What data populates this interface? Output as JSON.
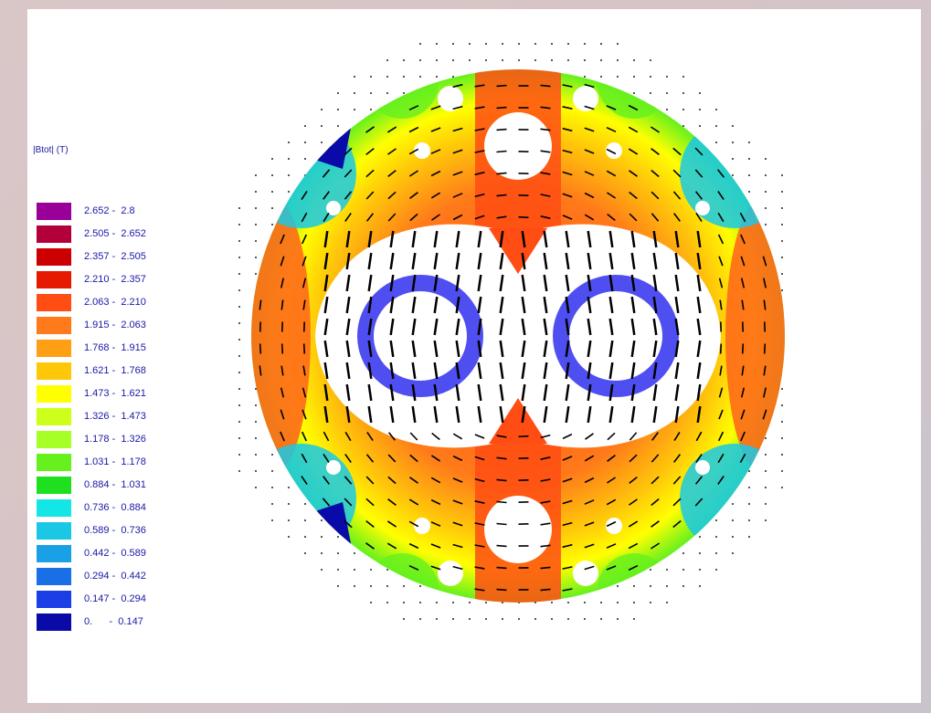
{
  "legend": {
    "title": "|Btot| (T)",
    "ranges": [
      {
        "label": "2.652 -  2.8",
        "color": "#990099"
      },
      {
        "label": "2.505 -  2.652",
        "color": "#b3003a"
      },
      {
        "label": "2.357 -  2.505",
        "color": "#cc0000"
      },
      {
        "label": "2.210 -  2.357",
        "color": "#e61a00"
      },
      {
        "label": "2.063 -  2.210",
        "color": "#ff4d14"
      },
      {
        "label": "1.915 -  2.063",
        "color": "#ff7a1a"
      },
      {
        "label": "1.768 -  1.915",
        "color": "#ff9f14"
      },
      {
        "label": "1.621 -  1.768",
        "color": "#ffc70a"
      },
      {
        "label": "1.473 -  1.621",
        "color": "#ffff00"
      },
      {
        "label": "1.326 -  1.473",
        "color": "#ccff1a"
      },
      {
        "label": "1.178 -  1.326",
        "color": "#a6ff26"
      },
      {
        "label": "1.031 -  1.178",
        "color": "#66f01e"
      },
      {
        "label": "0.884 -  1.031",
        "color": "#1fe01f"
      },
      {
        "label": "0.736 -  0.884",
        "color": "#14e6e6"
      },
      {
        "label": "0.589 -  0.736",
        "color": "#1ac8e6"
      },
      {
        "label": "0.442 -  0.589",
        "color": "#1aa0e6"
      },
      {
        "label": "0.294 -  0.442",
        "color": "#1a6ee6"
      },
      {
        "label": "0.147 -  0.294",
        "color": "#1a3fe6"
      },
      {
        "label": "0.      -  0.147",
        "color": "#0a0aa8"
      }
    ]
  },
  "colors": {
    "iron_high": "#f04010",
    "iron_mid": "#ffd000",
    "iron_low": "#7ae82a",
    "iron_min": "#1aa0e6",
    "coil": "#3c3cf0",
    "arrow": "#000000"
  },
  "figure": {
    "icons": [
      "magnet-cross-section",
      "field-vector-arrows",
      "coil-blocks",
      "air-grid-dots"
    ]
  }
}
